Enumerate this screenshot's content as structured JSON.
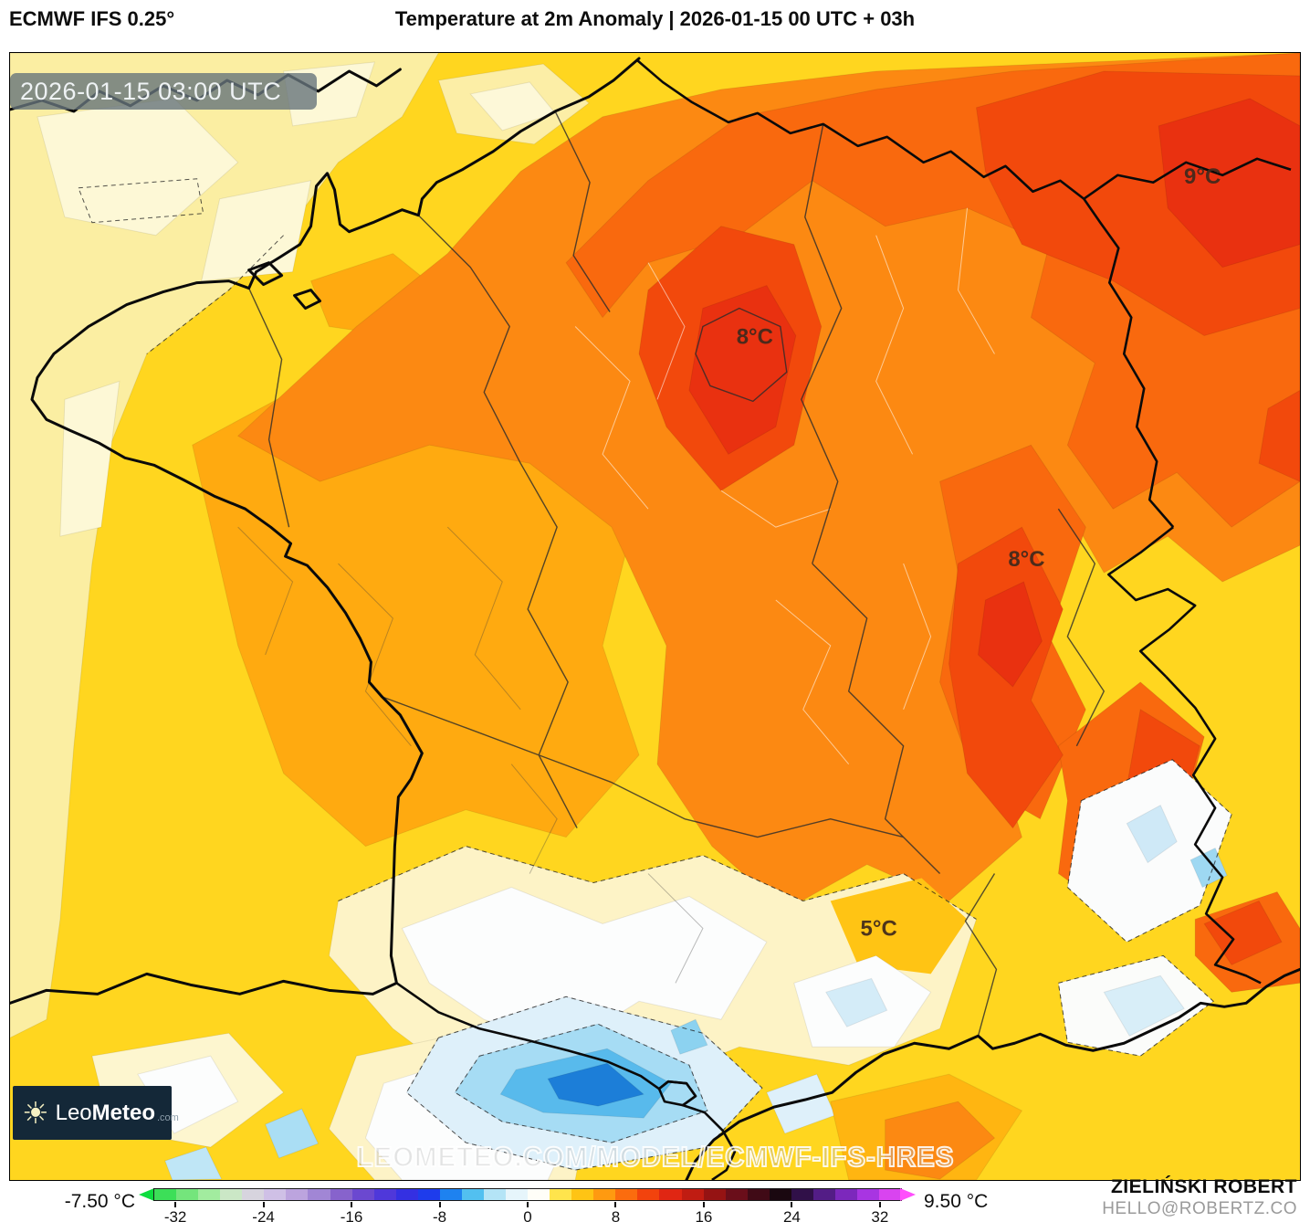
{
  "header": {
    "model": "ECMWF IFS 0.25°",
    "title": "Temperature at 2m Anomaly | 2026-01-15 00 UTC + 03h"
  },
  "map": {
    "timestamp": "2026-01-15 03:00 UTC",
    "labels": [
      {
        "text": "9°C"
      },
      {
        "text": "8°C"
      },
      {
        "text": "8°C"
      },
      {
        "text": "5°C"
      }
    ],
    "watermark": "LEOMETEO.COM/MODEL/ECMWF-IFS-HRES",
    "logo": {
      "icon": "sun-icon",
      "text_light": "Leo",
      "text_bold": "Meteo",
      "text_suffix": ".com"
    },
    "palette": {
      "cream": "#fdf7d2",
      "pale_yellow": "#fbeea2",
      "yellow": "#ffd61f",
      "gold": "#ffc414",
      "amber": "#ffaa10",
      "orange": "#fc8912",
      "deep_orange": "#f9690e",
      "orange_red": "#f2490c",
      "red": "#e93110",
      "white_zone": "#fcfdfd",
      "pale_blue": "#def0fa",
      "light_cyan": "#a6dcf4",
      "cyan": "#58baec",
      "blue": "#1c7ed8"
    }
  },
  "colorbar": {
    "min_label": "-7.50 °C",
    "max_label": "9.50 °C",
    "unit": "°C",
    "range": [
      -34,
      34
    ],
    "ticks": [
      -32,
      -24,
      -16,
      -8,
      0,
      8,
      16,
      24,
      32
    ],
    "tip_left": "#0ddd3e",
    "tip_right": "#ff4efc",
    "segments": [
      "#3cdf58",
      "#74e57c",
      "#a2ec9f",
      "#cbe7c6",
      "#d7d4de",
      "#cfc0e6",
      "#bca4de",
      "#a186d5",
      "#8763cc",
      "#6b48d0",
      "#4f38da",
      "#3430e2",
      "#1e3cec",
      "#1e82f0",
      "#52c0f0",
      "#b4e4f6",
      "#e6f5fb",
      "#fffef8",
      "#ffe44c",
      "#ffc414",
      "#ff9a10",
      "#fb6c0e",
      "#f2430d",
      "#e02613",
      "#c01c12",
      "#951313",
      "#6a0e1a",
      "#400a16",
      "#1a0810",
      "#301048",
      "#531d86",
      "#7c28bc",
      "#a835e2",
      "#d944f0"
    ]
  },
  "attribution": {
    "name": "ZIELIŃSKI ROBERT",
    "contact": "HELLO@ROBERTZ.CO"
  }
}
